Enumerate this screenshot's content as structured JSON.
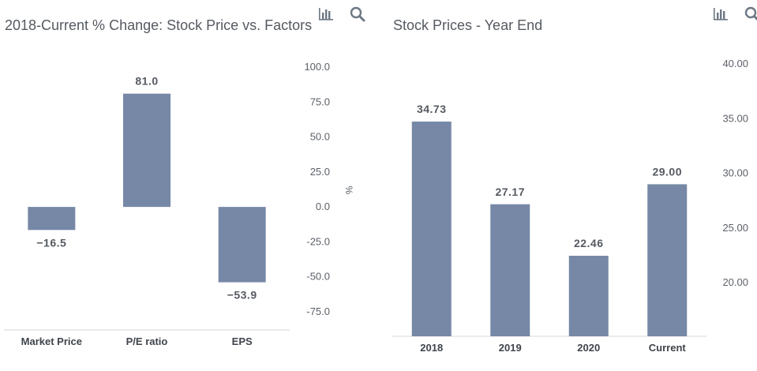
{
  "colors": {
    "bar": "#7688a6",
    "title": "#555a61",
    "axis": "#d7d7d7",
    "icon": "#6d7884"
  },
  "icons": [
    "bar-chart-icon",
    "search-icon"
  ],
  "chart_data": [
    {
      "type": "bar",
      "title": "2018-Current % Change: Stock Price vs. Factors",
      "categories": [
        "Market Price",
        "P/E ratio",
        "EPS"
      ],
      "values": [
        -16.5,
        81.0,
        -53.9
      ],
      "data_labels": [
        "−16.5",
        "81.0",
        "−53.9"
      ],
      "yticks": [
        "100.0",
        "75.0",
        "50.0",
        "25.0",
        "0.0",
        "-25.0",
        "-50.0",
        "-75.0"
      ],
      "ytick_values": [
        100,
        75,
        50,
        25,
        0,
        -25,
        -50,
        -75
      ],
      "ylabel": "%",
      "ylim": [
        -88,
        100
      ],
      "axis_side": "right",
      "grid": false
    },
    {
      "type": "bar",
      "title": "Stock Prices - Year End",
      "categories": [
        "2018",
        "2019",
        "2020",
        "Current"
      ],
      "values": [
        34.73,
        27.17,
        22.46,
        29.0
      ],
      "data_labels": [
        "34.73",
        "27.17",
        "22.46",
        "29.00"
      ],
      "yticks": [
        "40.00",
        "35.00",
        "30.00",
        "25.00",
        "20.00"
      ],
      "ytick_values": [
        40,
        35,
        30,
        25,
        20
      ],
      "ylabel": "",
      "ylim": [
        15.1,
        40
      ],
      "axis_side": "right",
      "grid": false
    }
  ]
}
